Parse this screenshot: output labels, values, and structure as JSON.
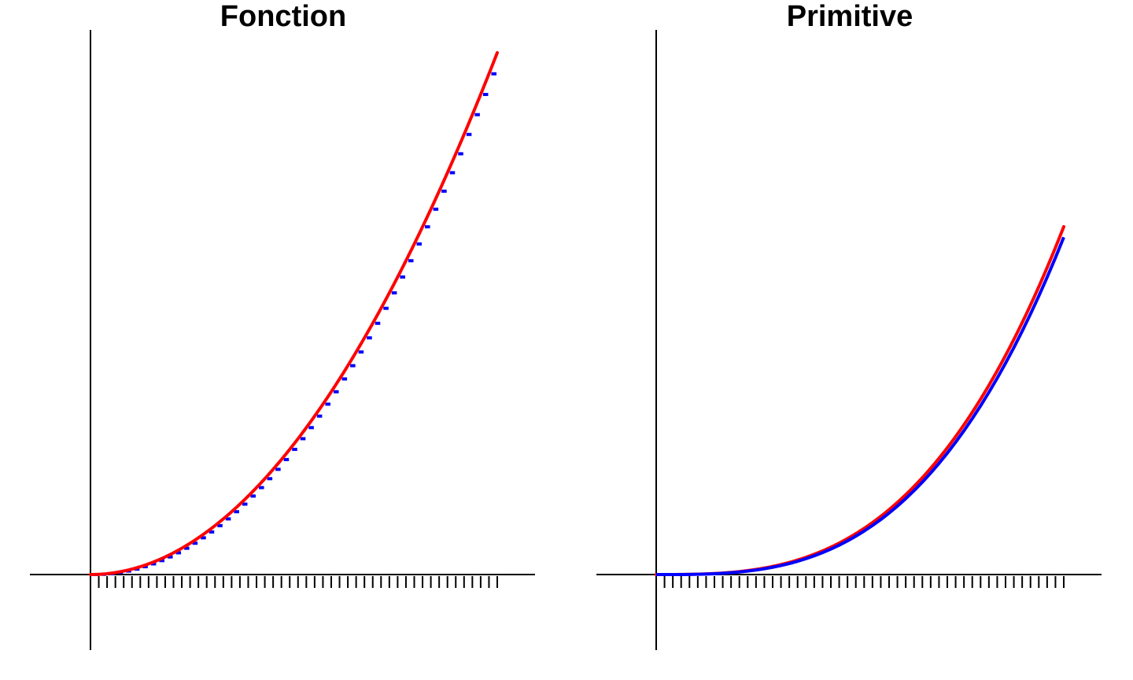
{
  "colors": {
    "exact": "#ff0000",
    "approx": "#0000ff",
    "axis": "#000000"
  },
  "chart_data": [
    {
      "type": "line",
      "title": "Fonction",
      "function": "x^2",
      "x_range": [
        0,
        1
      ],
      "ylim": [
        0,
        1
      ],
      "n_steps": 49,
      "series": [
        {
          "color": "#ff0000",
          "style": "curve",
          "x": [
            0,
            0.1,
            0.2,
            0.3,
            0.4,
            0.5,
            0.6,
            0.7,
            0.8,
            0.9,
            1.0
          ],
          "values": [
            0,
            0.01,
            0.04,
            0.09,
            0.16,
            0.25,
            0.36,
            0.49,
            0.64,
            0.81,
            1.0
          ]
        },
        {
          "color": "#0000ff",
          "style": "left-riemann-steps",
          "x_start": 0,
          "x_end": 1,
          "n": 49
        }
      ]
    },
    {
      "type": "line",
      "title": "Primitive",
      "function": "x^3/3",
      "x_range": [
        0,
        1
      ],
      "ylim": [
        0,
        0.66
      ],
      "n_steps": 49,
      "series": [
        {
          "color": "#ff0000",
          "style": "curve",
          "x": [
            0,
            0.2,
            0.4,
            0.6,
            0.8,
            1.0
          ],
          "values": [
            0,
            0.0027,
            0.0213,
            0.072,
            0.1707,
            0.3333
          ]
        },
        {
          "color": "#0000ff",
          "style": "cumulative-left-riemann",
          "x_start": 0,
          "x_end": 1,
          "n": 49
        }
      ]
    }
  ]
}
